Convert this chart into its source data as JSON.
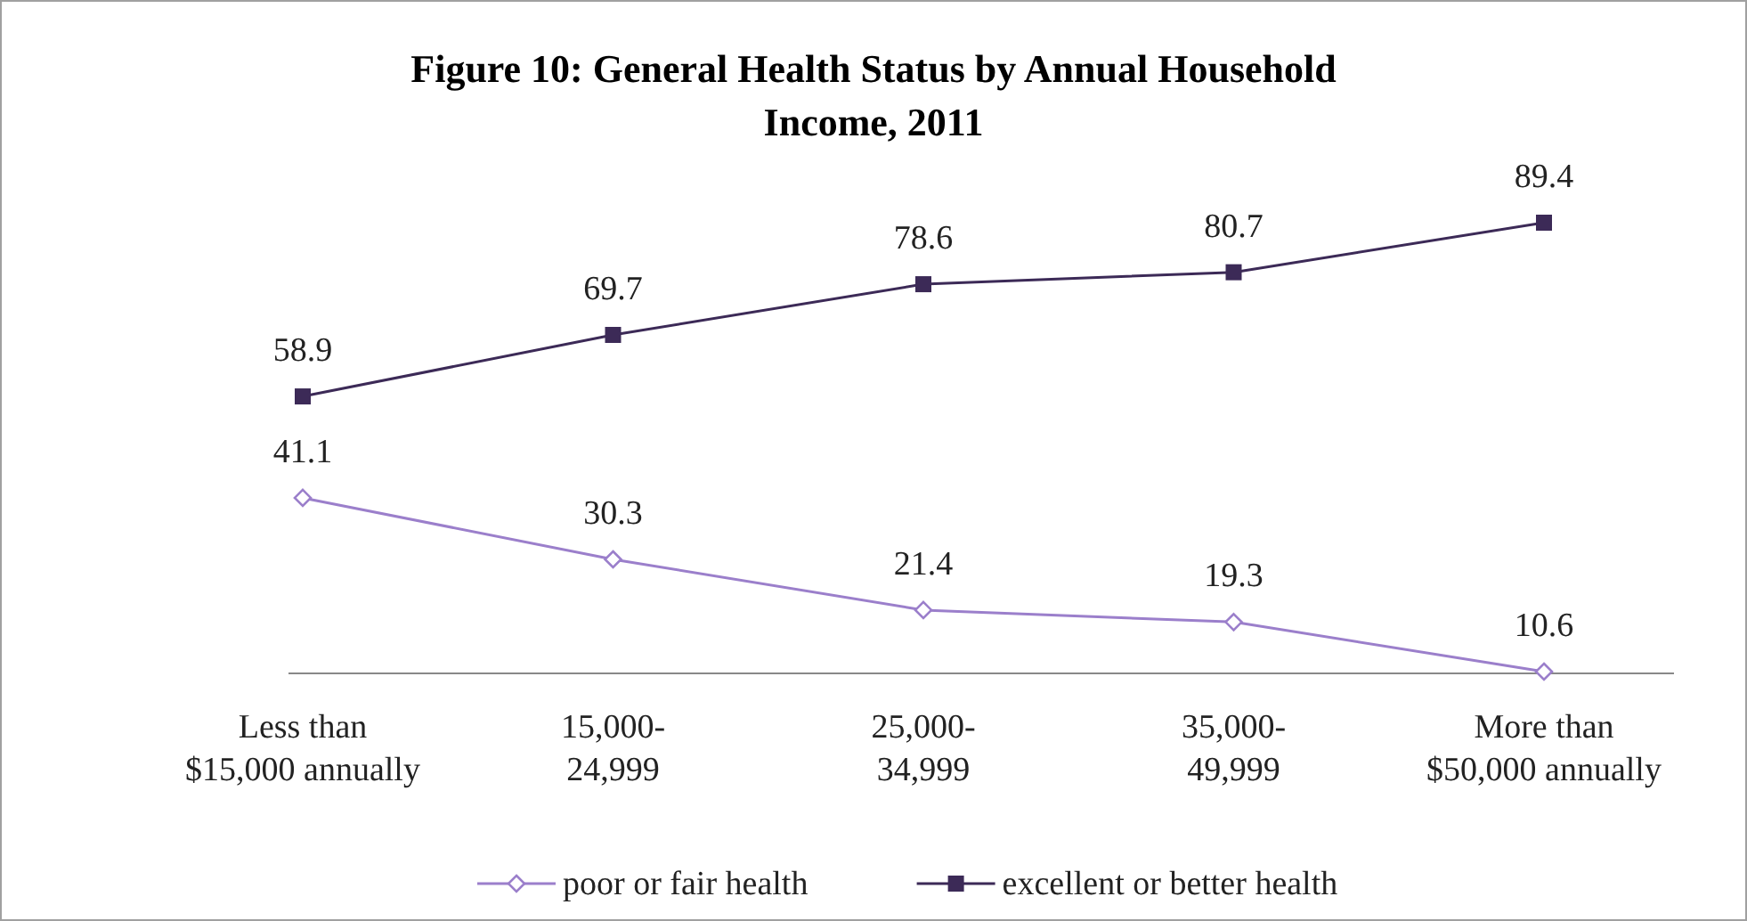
{
  "chart_data": {
    "type": "line",
    "title": "Figure 10: General Health Status by Annual Household Income, 2011",
    "categories": [
      "Less than $15,000 annually",
      "15,000-24,999",
      "25,000-34,999",
      "35,000-49,999",
      "More than $50,000 annually"
    ],
    "series": [
      {
        "name": "poor or fair health",
        "color": "#9b7fcb",
        "marker": "diamond",
        "values": [
          41.1,
          30.3,
          21.4,
          19.3,
          10.6
        ]
      },
      {
        "name": "excellent or better health",
        "color": "#3c2a57",
        "marker": "square",
        "values": [
          58.9,
          69.7,
          78.6,
          80.7,
          89.4
        ]
      }
    ],
    "tick_labels": "x",
    "data_labels": true,
    "legend": "bottom",
    "line_style": "solid"
  }
}
